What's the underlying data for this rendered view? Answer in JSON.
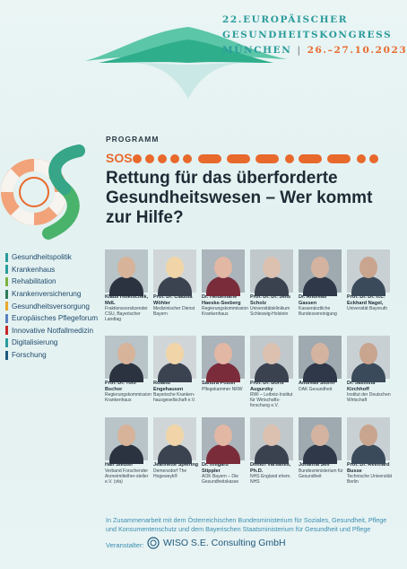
{
  "header": {
    "congress_line1": "22.EUROPÄISCHER",
    "congress_line2": "GESUNDHEITSKONGRESS",
    "city": "MÜNCHEN",
    "separator": "|",
    "dates": "26.–27.10.2023"
  },
  "program": {
    "label": "PROGRAMM",
    "sos": "SOS",
    "headline": "Rettung für das überforderte Gesundheitswesen – Wer kommt zur Hilfe?"
  },
  "topics": [
    {
      "label": "Gesundheitspolitik",
      "color": "#2a9b9b"
    },
    {
      "label": "Krankenhaus",
      "color": "#2a9b9b"
    },
    {
      "label": "Rehabilitation",
      "color": "#7cb342"
    },
    {
      "label": "Krankenversicherung",
      "color": "#2e7d5b"
    },
    {
      "label": "Gesundheitsversorgung",
      "color": "#e8a82c"
    },
    {
      "label": "Europäisches Pflegeforum",
      "color": "#5b7fbf"
    },
    {
      "label": "Innovative Notfallmedizin",
      "color": "#c62828"
    },
    {
      "label": "Digitalisierung",
      "color": "#2a9b9b"
    },
    {
      "label": "Forschung",
      "color": "#1e5a7e"
    }
  ],
  "speakers": [
    {
      "name": "Klaus Holetschek, MdL",
      "role": "Fraktionsvorsitzender CSU, Bayerischer Landtag"
    },
    {
      "name": "Prof. Dr. Claudia Wöhler",
      "role": "Medizinischer Dienst Bayern"
    },
    {
      "name": "Dr. Heidemarie Haeske-Seeberg",
      "role": "Regierungskommission Krankenhaus"
    },
    {
      "name": "Prof. Dr. Dr. Jens Scholz",
      "role": "Universitätsklinikum Schleswig-Holstein"
    },
    {
      "name": "Dr. Andreas Gassen",
      "role": "Kassenärztliche Bundesvereinigung"
    },
    {
      "name": "Prof. Dr. Dr. h.c. Eckhard Nagel,",
      "role": "Universität Bayreuth"
    },
    {
      "name": "Prof. Dr. Tom Bschor",
      "role": "Regierungskommission Krankenhaus"
    },
    {
      "name": "Roland Engehausen",
      "role": "Bayerische Kranken-hausgesellschaft e.V."
    },
    {
      "name": "Sandra Postel",
      "role": "Pflegekammer NRW"
    },
    {
      "name": "Prof. Dr. Boris Augurzky",
      "role": "RWI – Leibniz-Institut für Wirtschafts-forschung e.V."
    },
    {
      "name": "Andreas Storm",
      "role": "DAK Gesundheit"
    },
    {
      "name": "Dr. Jasmina Kirchhoff",
      "role": "Institut der Deutschen Wirtschaft"
    },
    {
      "name": "Han Steutel",
      "role": "Verband Forschender Arzneimittelher-steller e.V. (vfa)"
    },
    {
      "name": "Jeannette Spiering",
      "role": "Demenzdorf The Hogeweyk®"
    },
    {
      "name": "Dr. Irmgard Stippler",
      "role": "AOK Bayern – Die Gesundheitskasse"
    },
    {
      "name": "Dimitri Varsamis, Ph.D.",
      "role": "NHS England ehem. NHS"
    },
    {
      "name": "Johanna Sell",
      "role": "Bundesministerium für Gesundheit"
    },
    {
      "name": "Prof. Dr. Reinhard Busse",
      "role": "Technische Universität Berlin"
    }
  ],
  "footer": {
    "text": "In Zusammenarbeit mit dem Österreichischen Bundesministerium für Soziales, Gesundheit, Pflege und Konsumentenschutz und dem Bayerischen Staatsministerium für Gesundheit und Pflege",
    "organizer_label": "Veranstalter:",
    "organizer_name": "WISO S.E. Consulting GmbH"
  },
  "colors": {
    "teal": "#2a9b9b",
    "orange": "#e8692c",
    "green": "#7cb342",
    "dark": "#1d2b35"
  }
}
